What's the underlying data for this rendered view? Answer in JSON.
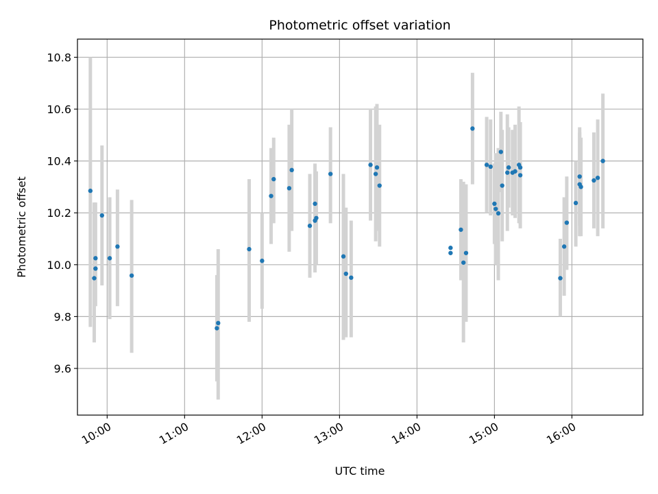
{
  "chart_data": {
    "type": "scatter",
    "title": "Photometric offset variation",
    "xlabel": "UTC time",
    "ylabel": "Photometric offset",
    "x_ticks": [
      "10:00",
      "11:00",
      "12:00",
      "13:00",
      "14:00",
      "15:00",
      "16:00"
    ],
    "y_ticks": [
      "9.6",
      "9.8",
      "10.0",
      "10.2",
      "10.4",
      "10.6",
      "10.8"
    ],
    "xlim": [
      "09:37",
      "16:55"
    ],
    "ylim": [
      9.42,
      10.87
    ],
    "grid": true,
    "colors": {
      "point": "#1f77b4",
      "errorbar": "#d3d3d3"
    },
    "points": [
      {
        "x": "09:47",
        "y": 10.285,
        "ylo": 9.76,
        "yhi": 10.8
      },
      {
        "x": "09:50",
        "y": 9.948,
        "ylo": 9.7,
        "yhi": 10.24
      },
      {
        "x": "09:51",
        "y": 9.985,
        "ylo": 9.98,
        "yhi": 9.99
      },
      {
        "x": "09:51",
        "y": 10.025,
        "ylo": 9.84,
        "yhi": 10.24
      },
      {
        "x": "09:56",
        "y": 10.19,
        "ylo": 9.92,
        "yhi": 10.46
      },
      {
        "x": "10:02",
        "y": 10.025,
        "ylo": 9.79,
        "yhi": 10.26
      },
      {
        "x": "10:08",
        "y": 10.07,
        "ylo": 9.84,
        "yhi": 10.29
      },
      {
        "x": "10:19",
        "y": 9.958,
        "ylo": 9.66,
        "yhi": 10.25
      },
      {
        "x": "11:25",
        "y": 9.755,
        "ylo": 9.55,
        "yhi": 9.96
      },
      {
        "x": "11:26",
        "y": 9.775,
        "ylo": 9.48,
        "yhi": 10.06
      },
      {
        "x": "11:50",
        "y": 10.06,
        "ylo": 9.78,
        "yhi": 10.33
      },
      {
        "x": "12:00",
        "y": 10.015,
        "ylo": 9.83,
        "yhi": 10.2
      },
      {
        "x": "12:07",
        "y": 10.265,
        "ylo": 10.08,
        "yhi": 10.45
      },
      {
        "x": "12:09",
        "y": 10.33,
        "ylo": 10.16,
        "yhi": 10.49
      },
      {
        "x": "12:21",
        "y": 10.295,
        "ylo": 10.05,
        "yhi": 10.54
      },
      {
        "x": "12:23",
        "y": 10.365,
        "ylo": 10.13,
        "yhi": 10.6
      },
      {
        "x": "12:37",
        "y": 10.15,
        "ylo": 9.95,
        "yhi": 10.35
      },
      {
        "x": "12:41",
        "y": 10.235,
        "ylo": 10.08,
        "yhi": 10.39
      },
      {
        "x": "12:41",
        "y": 10.17,
        "ylo": 9.97,
        "yhi": 10.36
      },
      {
        "x": "12:42",
        "y": 10.18,
        "ylo": 10.0,
        "yhi": 10.36
      },
      {
        "x": "12:53",
        "y": 10.35,
        "ylo": 10.16,
        "yhi": 10.53
      },
      {
        "x": "13:03",
        "y": 10.032,
        "ylo": 9.71,
        "yhi": 10.35
      },
      {
        "x": "13:05",
        "y": 9.965,
        "ylo": 9.72,
        "yhi": 10.22
      },
      {
        "x": "13:09",
        "y": 9.95,
        "ylo": 9.72,
        "yhi": 10.17
      },
      {
        "x": "13:24",
        "y": 10.385,
        "ylo": 10.17,
        "yhi": 10.6
      },
      {
        "x": "13:28",
        "y": 10.35,
        "ylo": 10.09,
        "yhi": 10.61
      },
      {
        "x": "13:29",
        "y": 10.375,
        "ylo": 10.13,
        "yhi": 10.62
      },
      {
        "x": "13:31",
        "y": 10.305,
        "ylo": 10.07,
        "yhi": 10.54
      },
      {
        "x": "14:26",
        "y": 10.045,
        "ylo": 10.04,
        "yhi": 10.05
      },
      {
        "x": "14:26",
        "y": 10.065,
        "ylo": 10.06,
        "yhi": 10.07
      },
      {
        "x": "14:34",
        "y": 10.135,
        "ylo": 9.94,
        "yhi": 10.33
      },
      {
        "x": "14:36",
        "y": 10.008,
        "ylo": 9.7,
        "yhi": 10.32
      },
      {
        "x": "14:38",
        "y": 10.045,
        "ylo": 9.78,
        "yhi": 10.31
      },
      {
        "x": "14:43",
        "y": 10.525,
        "ylo": 10.31,
        "yhi": 10.74
      },
      {
        "x": "14:54",
        "y": 10.385,
        "ylo": 10.2,
        "yhi": 10.57
      },
      {
        "x": "14:57",
        "y": 10.378,
        "ylo": 10.19,
        "yhi": 10.56
      },
      {
        "x": "15:00",
        "y": 10.235,
        "ylo": 10.08,
        "yhi": 10.39
      },
      {
        "x": "15:01",
        "y": 10.215,
        "ylo": 10.0,
        "yhi": 10.43
      },
      {
        "x": "15:03",
        "y": 10.198,
        "ylo": 9.94,
        "yhi": 10.45
      },
      {
        "x": "15:05",
        "y": 10.435,
        "ylo": 10.28,
        "yhi": 10.59
      },
      {
        "x": "15:06",
        "y": 10.305,
        "ylo": 10.09,
        "yhi": 10.52
      },
      {
        "x": "15:10",
        "y": 10.355,
        "ylo": 10.13,
        "yhi": 10.58
      },
      {
        "x": "15:11",
        "y": 10.375,
        "ylo": 10.22,
        "yhi": 10.53
      },
      {
        "x": "15:14",
        "y": 10.355,
        "ylo": 10.19,
        "yhi": 10.52
      },
      {
        "x": "15:16",
        "y": 10.36,
        "ylo": 10.18,
        "yhi": 10.54
      },
      {
        "x": "15:19",
        "y": 10.385,
        "ylo": 10.16,
        "yhi": 10.61
      },
      {
        "x": "15:20",
        "y": 10.345,
        "ylo": 10.14,
        "yhi": 10.55
      },
      {
        "x": "15:20",
        "y": 10.375,
        "ylo": 10.2,
        "yhi": 10.55
      },
      {
        "x": "15:51",
        "y": 9.948,
        "ylo": 9.8,
        "yhi": 10.1
      },
      {
        "x": "15:54",
        "y": 10.07,
        "ylo": 9.88,
        "yhi": 10.26
      },
      {
        "x": "15:56",
        "y": 10.162,
        "ylo": 9.98,
        "yhi": 10.34
      },
      {
        "x": "16:03",
        "y": 10.238,
        "ylo": 10.07,
        "yhi": 10.4
      },
      {
        "x": "16:06",
        "y": 10.31,
        "ylo": 10.11,
        "yhi": 10.51
      },
      {
        "x": "16:06",
        "y": 10.34,
        "ylo": 10.15,
        "yhi": 10.53
      },
      {
        "x": "16:07",
        "y": 10.3,
        "ylo": 10.11,
        "yhi": 10.49
      },
      {
        "x": "16:17",
        "y": 10.325,
        "ylo": 10.14,
        "yhi": 10.51
      },
      {
        "x": "16:20",
        "y": 10.335,
        "ylo": 10.11,
        "yhi": 10.56
      },
      {
        "x": "16:24",
        "y": 10.4,
        "ylo": 10.14,
        "yhi": 10.66
      }
    ]
  }
}
